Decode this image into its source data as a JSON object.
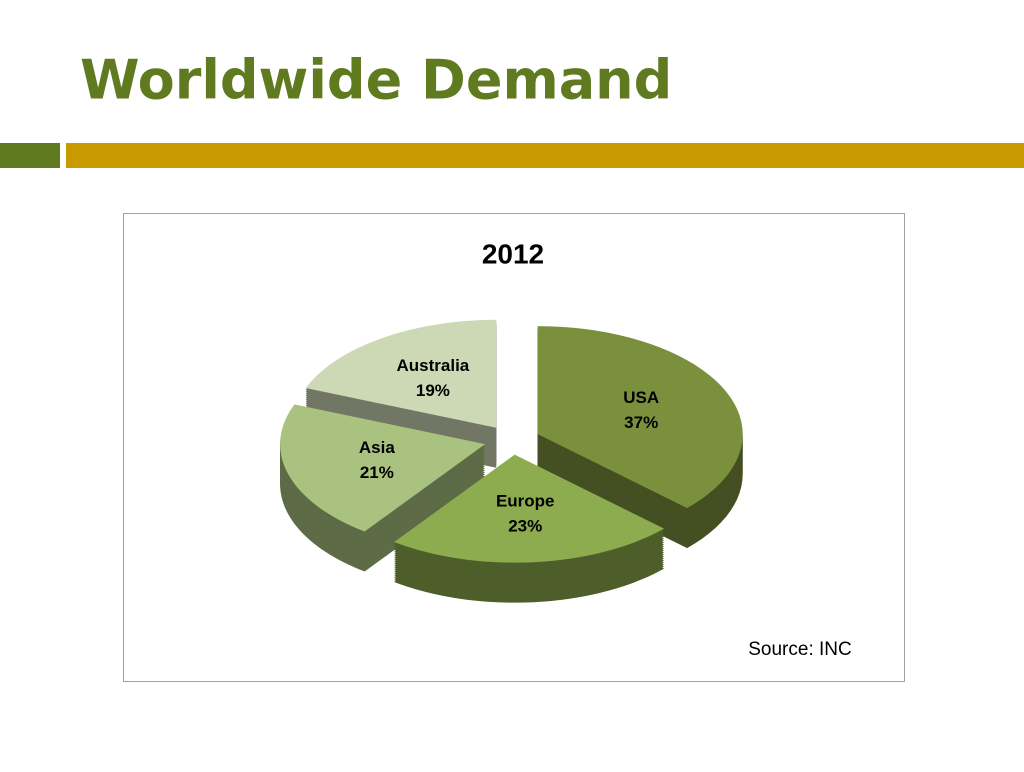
{
  "slide_title": "Worldwide Demand",
  "chart_data": {
    "type": "pie",
    "title": "2012",
    "categories": [
      "USA",
      "Europe",
      "Asia",
      "Australia"
    ],
    "values": [
      37,
      23,
      21,
      19
    ],
    "value_labels": [
      "37%",
      "23%",
      "21%",
      "19%"
    ],
    "colors": [
      "#7b903d",
      "#8dab4f",
      "#a9c27f",
      "#cdd9b5"
    ],
    "source": "Source: INC"
  }
}
